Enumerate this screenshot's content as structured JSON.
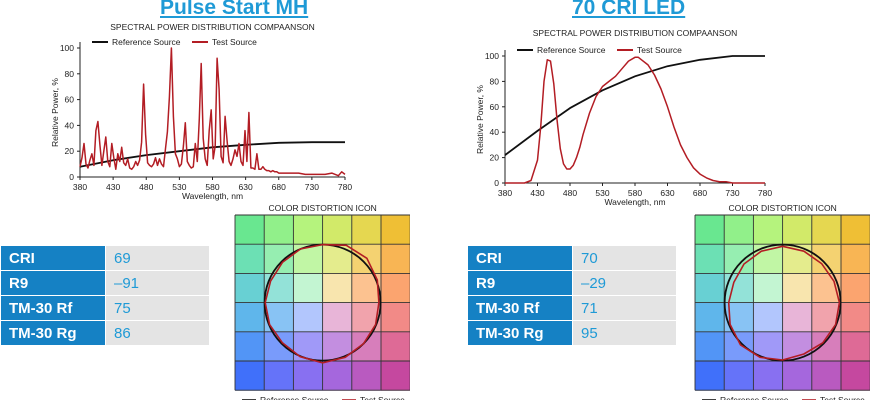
{
  "panels": [
    {
      "heading": "Pulse Start MH",
      "metrics": [
        {
          "label": "CRI",
          "value": "69"
        },
        {
          "label": "R9",
          "value": "–91"
        },
        {
          "label": "TM-30 Rf",
          "value": "75"
        },
        {
          "label": "TM-30 Rg",
          "value": "86"
        }
      ]
    },
    {
      "heading": "70 CRI LED",
      "metrics": [
        {
          "label": "CRI",
          "value": "70"
        },
        {
          "label": "R9",
          "value": "–29"
        },
        {
          "label": "TM-30 Rf",
          "value": "71"
        },
        {
          "label": "TM-30 Rg",
          "value": "95"
        }
      ]
    }
  ],
  "chart_data": [
    {
      "type": "line",
      "title": "SPECTRAL POWER DISTRIBUTION COMPAANSON",
      "xlabel": "Wavelength, nm",
      "ylabel": "Relative Power, %",
      "xlim": [
        380,
        780
      ],
      "ylim": [
        0,
        100
      ],
      "xticks": [
        380,
        430,
        480,
        530,
        580,
        630,
        680,
        730,
        780
      ],
      "yticks": [
        0,
        20,
        40,
        60,
        80,
        100
      ],
      "grid": false,
      "legend_position": "top-left",
      "series": [
        {
          "name": "Reference Source",
          "color": "#111111",
          "x": [
            380,
            430,
            480,
            530,
            580,
            630,
            680,
            730,
            780
          ],
          "y": [
            8,
            13,
            17,
            20,
            23,
            25,
            26.5,
            27,
            27
          ]
        },
        {
          "name": "Test Source",
          "color": "#b31d24",
          "x": [
            380,
            383,
            386,
            389,
            392,
            395,
            398,
            401,
            404,
            407,
            410,
            413,
            416,
            419,
            422,
            425,
            428,
            431,
            434,
            437,
            440,
            443,
            446,
            449,
            452,
            455,
            458,
            461,
            464,
            467,
            470,
            473,
            476,
            479,
            482,
            485,
            488,
            491,
            494,
            497,
            500,
            503,
            506,
            509,
            512,
            515,
            518,
            521,
            524,
            527,
            530,
            533,
            536,
            539,
            542,
            545,
            548,
            551,
            554,
            557,
            560,
            563,
            566,
            569,
            572,
            575,
            578,
            581,
            584,
            587,
            590,
            593,
            596,
            599,
            602,
            605,
            608,
            611,
            614,
            617,
            620,
            623,
            626,
            629,
            632,
            635,
            638,
            641,
            644,
            647,
            650,
            653,
            656,
            659,
            662,
            665,
            668,
            671,
            674,
            677,
            680,
            690,
            700,
            710,
            720,
            730,
            740,
            750,
            760,
            770,
            775,
            780
          ],
          "y": [
            8,
            15,
            26,
            10,
            7,
            13,
            18,
            9,
            36,
            43,
            25,
            9,
            20,
            31,
            12,
            8,
            26,
            15,
            6,
            18,
            12,
            23,
            11,
            9,
            14,
            7,
            6,
            8,
            12,
            9,
            13,
            27,
            72,
            33,
            11,
            9,
            8,
            10,
            15,
            9,
            14,
            10,
            8,
            22,
            35,
            62,
            100,
            47,
            18,
            14,
            8,
            10,
            24,
            42,
            12,
            9,
            7,
            8,
            26,
            12,
            45,
            88,
            30,
            14,
            9,
            36,
            52,
            14,
            24,
            92,
            68,
            16,
            11,
            47,
            28,
            12,
            9,
            14,
            21,
            16,
            26,
            12,
            9,
            36,
            12,
            50,
            7,
            7,
            6,
            18,
            6,
            6,
            8,
            6,
            5,
            5,
            4,
            5,
            4,
            4,
            3,
            3,
            3,
            3,
            2,
            2,
            2,
            2,
            3,
            1,
            4,
            2
          ]
        }
      ]
    },
    {
      "type": "line",
      "title": "SPECTRAL POWER DISTRIBUTION COMPAANSON",
      "xlabel": "Wavelength, nm",
      "ylabel": "Relative Power, %",
      "xlim": [
        380,
        780
      ],
      "ylim": [
        0,
        100
      ],
      "xticks": [
        380,
        430,
        480,
        530,
        580,
        630,
        680,
        730,
        780
      ],
      "yticks": [
        0,
        20,
        40,
        60,
        80,
        100
      ],
      "grid": false,
      "legend_position": "top-left",
      "series": [
        {
          "name": "Reference Source",
          "color": "#111111",
          "x": [
            380,
            430,
            480,
            530,
            580,
            630,
            680,
            730,
            780
          ],
          "y": [
            22,
            41,
            59,
            73,
            84,
            92,
            97,
            100,
            100
          ]
        },
        {
          "name": "Test Source",
          "color": "#b31d24",
          "x": [
            380,
            390,
            400,
            410,
            420,
            430,
            435,
            440,
            445,
            450,
            455,
            460,
            465,
            470,
            475,
            480,
            485,
            490,
            495,
            500,
            510,
            520,
            530,
            540,
            550,
            560,
            570,
            580,
            585,
            590,
            600,
            610,
            620,
            630,
            640,
            650,
            660,
            670,
            680,
            690,
            700,
            710,
            720,
            730,
            740,
            750,
            760,
            770,
            780
          ],
          "y": [
            0,
            0,
            0,
            0,
            2,
            18,
            45,
            80,
            97,
            96,
            78,
            50,
            27,
            15,
            11,
            11,
            14,
            20,
            28,
            38,
            55,
            68,
            76,
            80,
            84,
            90,
            96,
            99,
            99,
            97,
            93,
            85,
            74,
            60,
            44,
            30,
            20,
            12,
            7,
            4,
            2,
            1,
            1,
            0,
            0,
            0,
            0,
            0,
            0
          ]
        }
      ]
    },
    {
      "type": "scatter",
      "title": "COLOR DISTORTION ICON",
      "legend": [
        "Reference Source",
        "Test Source"
      ],
      "reference_color": "#111111",
      "test_color": "#b31d24",
      "test_radii": [
        1.0,
        1.07,
        1.08,
        1.02,
        0.97,
        0.99,
        1.0,
        1.02,
        1.04,
        1.01,
        0.98,
        0.99,
        0.99,
        0.97,
        0.98,
        1.0
      ]
    },
    {
      "type": "scatter",
      "title": "COLOR DISTORTION ICON",
      "legend": [
        "Reference Source",
        "Test Source"
      ],
      "reference_color": "#111111",
      "test_color": "#b31d24",
      "test_radii": [
        0.97,
        0.96,
        0.95,
        0.96,
        0.98,
        0.99,
        0.98,
        0.96,
        0.99,
        1.02,
        1.03,
        0.98,
        0.93,
        0.91,
        0.94,
        0.96
      ]
    }
  ]
}
